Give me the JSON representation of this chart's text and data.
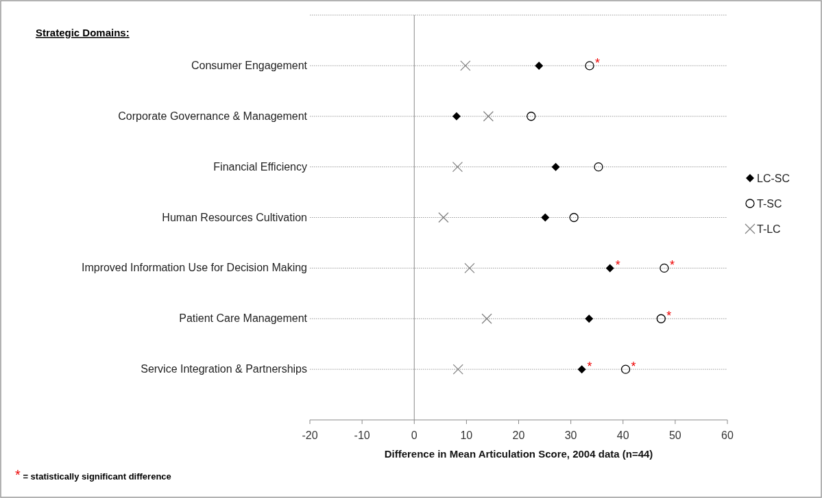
{
  "chart_data": {
    "type": "scatter",
    "ylabel": "Strategic Domains:",
    "xlabel": "Difference in Mean Articulation Score, 2004 data (n=44)",
    "categories": [
      null,
      "Consumer Engagement",
      "Corporate Governance & Management",
      "Financial Efficiency",
      "Human Resources Cultivation",
      "Improved Information Use for Decision Making",
      "Patient Care Management",
      "Service Integration & Partnerships"
    ],
    "series": [
      {
        "name": "LC-SC",
        "color": "#000000",
        "marker": "diamond",
        "values": [
          null,
          23.9,
          8.1,
          27.1,
          25.1,
          37.5,
          33.5,
          32.1
        ]
      },
      {
        "name": "T-SC",
        "color": "#000000",
        "marker": "circle",
        "values": [
          null,
          33.6,
          22.4,
          35.3,
          30.6,
          47.9,
          47.3,
          40.5
        ]
      },
      {
        "name": "T-LC",
        "color": "#808080",
        "marker": "cross",
        "values": [
          null,
          9.8,
          14.2,
          8.3,
          5.6,
          10.6,
          13.9,
          8.4
        ]
      }
    ],
    "xlim": [
      -20,
      60
    ],
    "xticks": [
      -20,
      -10,
      0,
      10,
      20,
      30,
      40,
      50,
      60
    ],
    "grid": "y",
    "legend": "right",
    "orientation": "horizontal",
    "annotations": [
      {
        "text": "*",
        "x": 33.6,
        "y": "Consumer Engagement"
      },
      {
        "text": "*",
        "x": 37.5,
        "y": "Improved Information Use for Decision Making"
      },
      {
        "text": "*",
        "x": 47.9,
        "y": "Improved Information Use for Decision Making"
      },
      {
        "text": "*",
        "x": 47.3,
        "y": "Patient Care Management"
      },
      {
        "text": "*",
        "x": 32.1,
        "y": "Service Integration & Partnerships"
      },
      {
        "text": "*",
        "x": 40.5,
        "y": "Service Integration & Partnerships"
      },
      "* = statistically significant difference"
    ]
  }
}
